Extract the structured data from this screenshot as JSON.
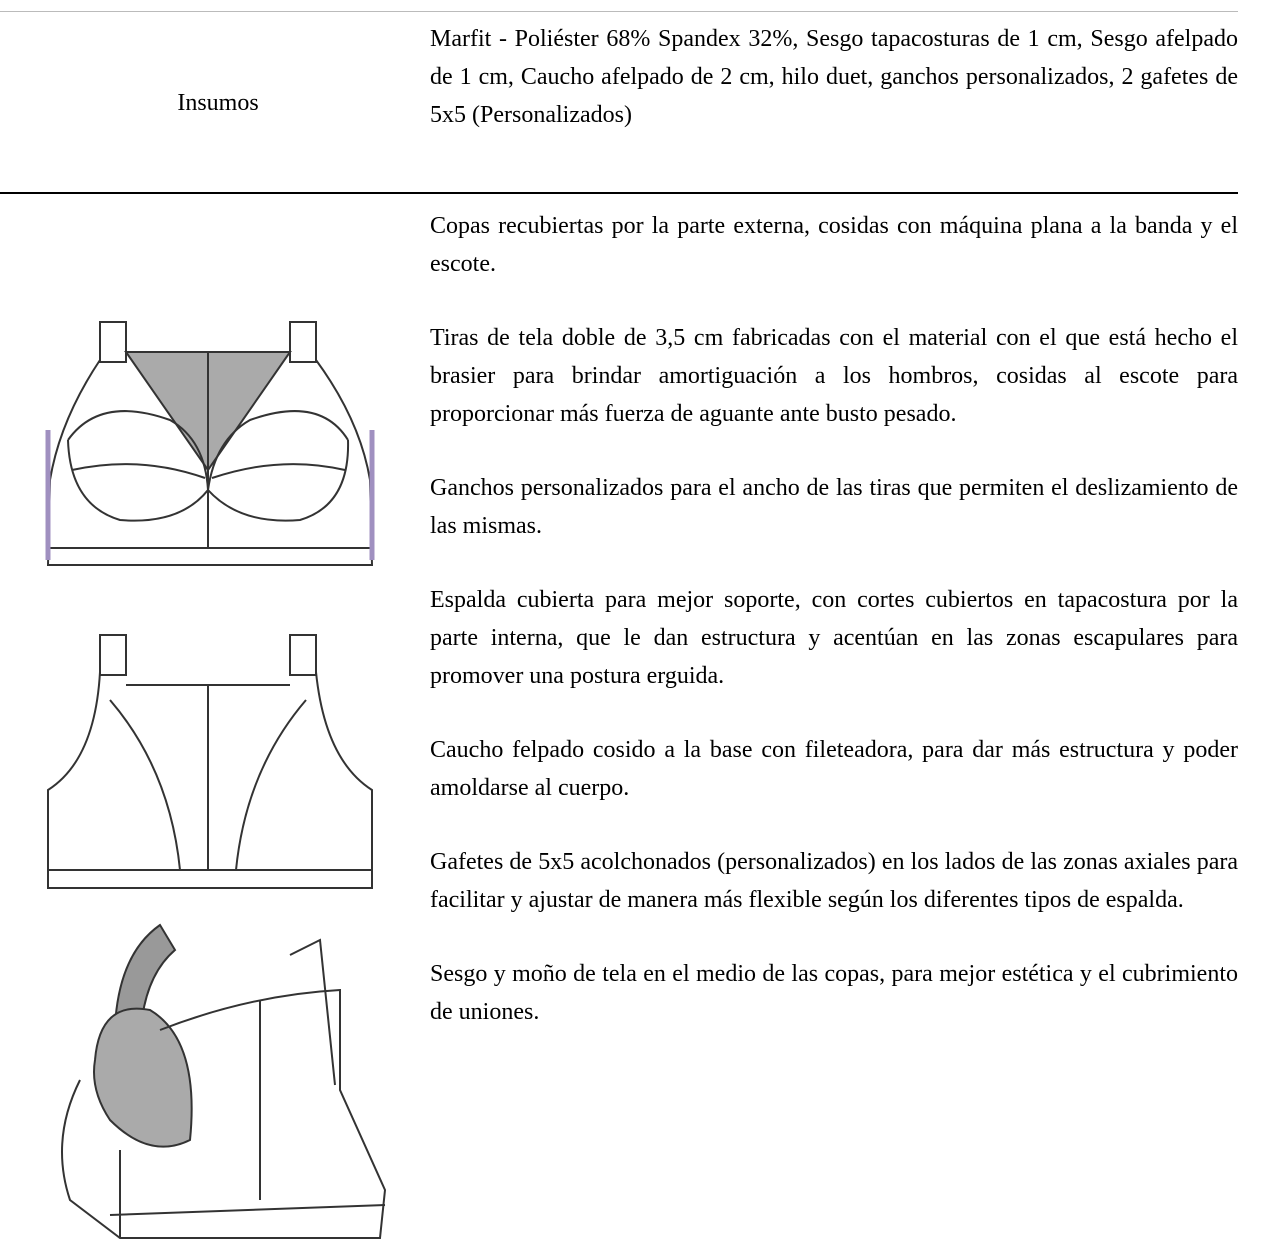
{
  "insumos": {
    "label": "Insumos",
    "text": "Marfit - Poliéster 68% Spandex 32%, Sesgo tapacosturas de 1 cm, Sesgo afelpado de 1 cm, Caucho afelpado de 2 cm, hilo duet, ganchos personalizados, 2 gafetes de 5x5 (Personalizados)"
  },
  "details": {
    "paragraphs": [
      "Copas recubiertas por la parte externa, cosidas con máquina plana a la banda y el escote.",
      "Tiras de tela doble de 3,5 cm fabricadas con el material con el que está hecho el brasier para brindar amortiguación a los hombros, cosidas al escote para proporcionar más fuerza de aguante ante busto pesado.",
      "Ganchos personalizados para el ancho de las tiras que permiten el deslizamiento de las mismas.",
      "Espalda cubierta para mejor soporte, con cortes cubiertos en tapacostura por la parte interna, que le dan estructura y acentúan en las zonas escapulares para promover una postura erguida.",
      "Caucho felpado cosido a la base con fileteadora, para dar más estructura y poder amoldarse al cuerpo.",
      "Gafetes de 5x5 acolchonados (personalizados) en los lados de las zonas axiales para facilitar y ajustar de manera más flexible según los diferentes tipos de espalda.",
      "Sesgo y moño de tela en el medio de las copas, para mejor estética y el cubrimiento de uniones."
    ]
  }
}
